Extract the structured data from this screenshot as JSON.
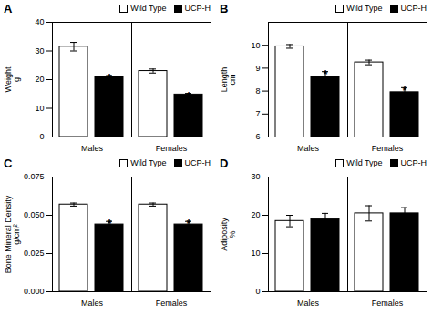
{
  "chart_data": [
    {
      "type": "bar",
      "title": "A",
      "ylabel": "Weight\ng",
      "categories": [
        "Males",
        "Females"
      ],
      "series": [
        {
          "name": "Wild Type",
          "color": "white",
          "values": [
            31.5,
            23.0
          ],
          "errors": [
            1.5,
            0.7
          ]
        },
        {
          "name": "UCP-H",
          "color": "black",
          "values": [
            21.0,
            14.8
          ],
          "errors": [
            0.4,
            0.4
          ]
        }
      ],
      "annotations": [
        {
          "text": "*",
          "category": "Males",
          "series": "UCP-H"
        },
        {
          "text": "*",
          "category": "Females",
          "series": "UCP-H"
        }
      ],
      "ylim": [
        0,
        40
      ],
      "yticks": [
        0,
        10,
        20,
        30,
        40
      ],
      "grid": false,
      "legend": "upper right"
    },
    {
      "type": "bar",
      "title": "B",
      "ylabel": "Length\ncm",
      "categories": [
        "Males",
        "Females"
      ],
      "series": [
        {
          "name": "Wild Type",
          "color": "white",
          "values": [
            9.95,
            9.25
          ],
          "errors": [
            0.08,
            0.1
          ]
        },
        {
          "name": "UCP-H",
          "color": "black",
          "values": [
            8.6,
            7.95
          ],
          "errors": [
            0.25,
            0.2
          ]
        }
      ],
      "annotations": [
        {
          "text": "*",
          "category": "Males",
          "series": "UCP-H"
        },
        {
          "text": "*",
          "category": "Females",
          "series": "UCP-H"
        }
      ],
      "ylim": [
        6,
        11
      ],
      "yticks": [
        6,
        7,
        8,
        9,
        10
      ],
      "grid": false,
      "legend": "upper right"
    },
    {
      "type": "bar",
      "title": "C",
      "ylabel": "Bone Mineral Density\ng/cm²",
      "categories": [
        "Males",
        "Females"
      ],
      "series": [
        {
          "name": "Wild Type",
          "color": "white",
          "values": [
            0.057,
            0.057
          ],
          "errors": [
            0.001,
            0.001
          ]
        },
        {
          "name": "UCP-H",
          "color": "black",
          "values": [
            0.044,
            0.044
          ],
          "errors": [
            0.002,
            0.002
          ]
        }
      ],
      "annotations": [
        {
          "text": "*",
          "category": "Males",
          "series": "UCP-H"
        },
        {
          "text": "*",
          "category": "Females",
          "series": "UCP-H"
        }
      ],
      "ylim": [
        0,
        0.075
      ],
      "yticks": [
        {
          "value": 0,
          "label": "0.000"
        },
        0.025,
        {
          "value": 0.05,
          "label": "0.050"
        },
        0.075
      ],
      "grid": false,
      "legend": "upper right"
    },
    {
      "type": "bar",
      "title": "D",
      "ylabel": "Adiposity\n%",
      "categories": [
        "Males",
        "Females"
      ],
      "series": [
        {
          "name": "Wild Type",
          "color": "white",
          "values": [
            18.5,
            20.5
          ],
          "errors": [
            1.5,
            2.0
          ]
        },
        {
          "name": "UCP-H",
          "color": "black",
          "values": [
            19.0,
            20.5
          ],
          "errors": [
            1.5,
            1.5
          ]
        }
      ],
      "ylim": [
        0,
        30
      ],
      "yticks": [
        0,
        10,
        20,
        30
      ],
      "grid": false,
      "legend": "upper right"
    }
  ]
}
